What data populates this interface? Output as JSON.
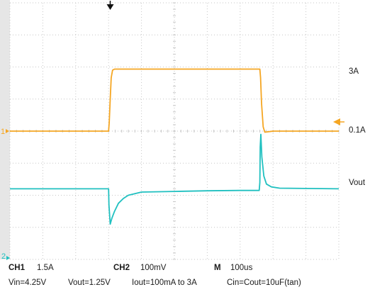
{
  "chart_data": {
    "type": "line",
    "x_unit": "us",
    "x_range": [
      0,
      1000
    ],
    "grid": true,
    "series": [
      {
        "name": "1",
        "color": "#f5a623",
        "unit": "A",
        "x": [
          0,
          300,
          302,
          305,
          308,
          312,
          318,
          330,
          400,
          500,
          600,
          700,
          760,
          762,
          765,
          770,
          775,
          800,
          1000
        ],
        "y": [
          0.1,
          0.1,
          0.5,
          1.6,
          2.6,
          2.95,
          3.0,
          3.0,
          3.0,
          3.0,
          3.0,
          3.0,
          3.0,
          2.6,
          1.4,
          0.3,
          0.05,
          0.1,
          0.1
        ]
      },
      {
        "name": "2",
        "color": "#20c0c0",
        "unit": "mV",
        "x": [
          0,
          300,
          301,
          305,
          310,
          318,
          330,
          345,
          360,
          400,
          500,
          600,
          700,
          758,
          760,
          761,
          763,
          766,
          772,
          780,
          795,
          820,
          1000
        ],
        "y": [
          0,
          0,
          -50,
          -110,
          -92,
          -70,
          -45,
          -30,
          -20,
          -10,
          -8,
          -6,
          -5,
          -5,
          20,
          130,
          170,
          100,
          40,
          15,
          6,
          2,
          0
        ]
      }
    ],
    "trigger_x": 305,
    "right_labels": {
      "high": "3A",
      "low": "0.1A",
      "ch2": "Vout"
    },
    "channel_markers": {
      "ch1": "1",
      "ch2": "2"
    },
    "settings": {
      "ch1_label": "CH1",
      "ch1_value": "1.5A",
      "ch2_label": "CH2",
      "ch2_value": "100mV",
      "time_label": "M",
      "time_value": "100us"
    },
    "caption": {
      "vin": "Vin=4.25V",
      "vout": "Vout=1.25V",
      "iout": "Iout=100mA to 3A",
      "cin": "Cin=Cout=10uF(tan)"
    }
  }
}
